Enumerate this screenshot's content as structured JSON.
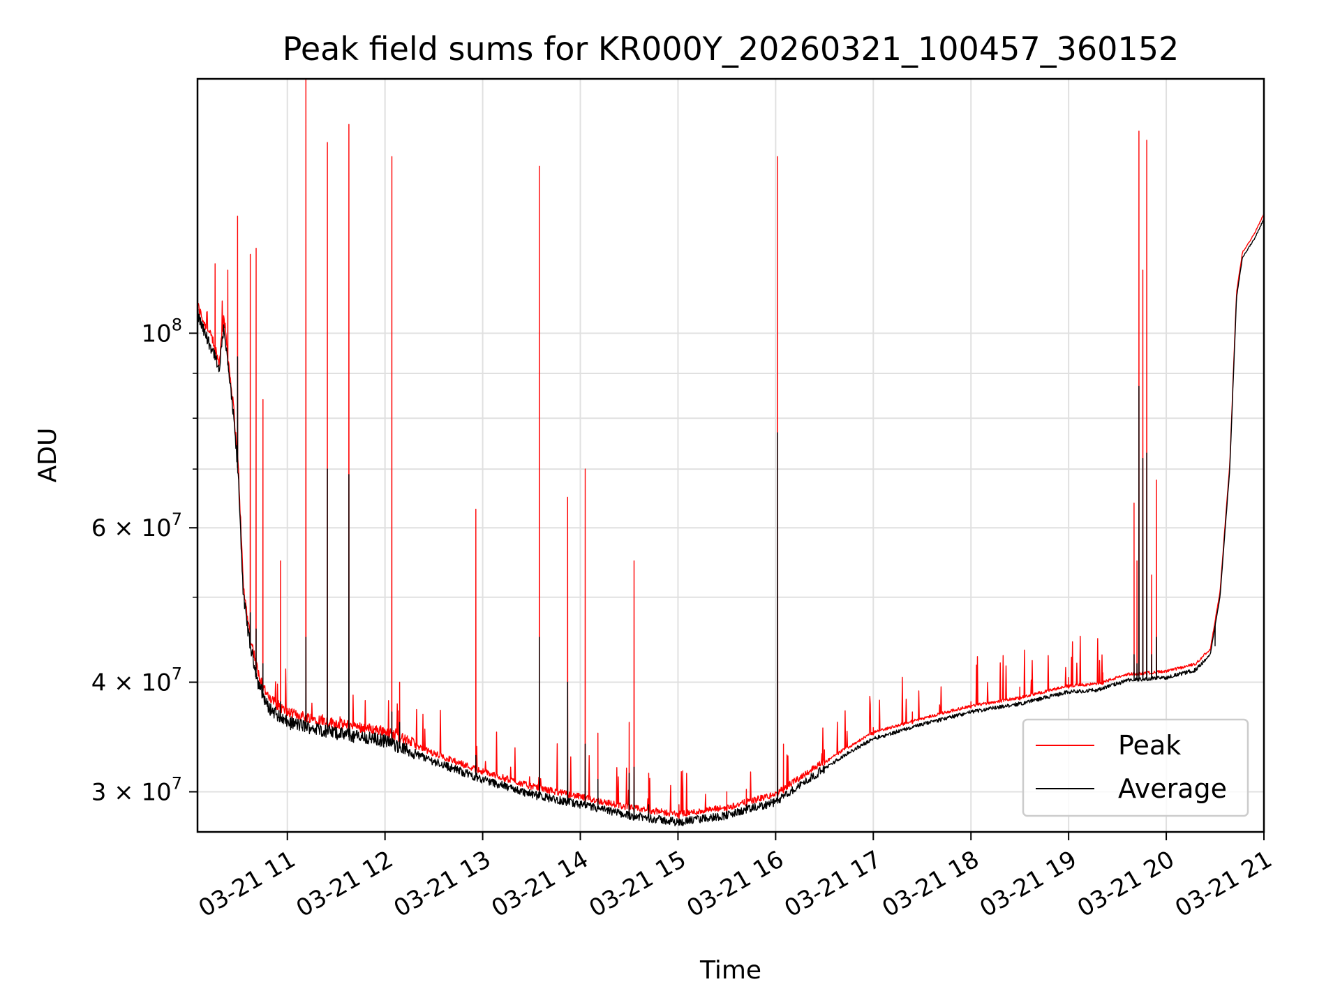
{
  "chart_data": {
    "type": "line",
    "title": "Peak field sums for KR000Y_20260321_100457_360152",
    "xlabel": "Time",
    "ylabel": "ADU",
    "yscale": "log",
    "grid": true,
    "legend_position": "lower-right",
    "x_range_hours": [
      10.08,
      21.0
    ],
    "y_range": [
      27000000,
      195000000
    ],
    "x_ticks": [
      {
        "value": 11,
        "label": "03-21 11"
      },
      {
        "value": 12,
        "label": "03-21 12"
      },
      {
        "value": 13,
        "label": "03-21 13"
      },
      {
        "value": 14,
        "label": "03-21 14"
      },
      {
        "value": 15,
        "label": "03-21 15"
      },
      {
        "value": 16,
        "label": "03-21 16"
      },
      {
        "value": 17,
        "label": "03-21 17"
      },
      {
        "value": 18,
        "label": "03-21 18"
      },
      {
        "value": 19,
        "label": "03-21 19"
      },
      {
        "value": 20,
        "label": "03-21 20"
      },
      {
        "value": 21,
        "label": "03-21 21"
      }
    ],
    "y_ticks": [
      {
        "value": 30000000,
        "mantissa": "3",
        "exp": "7"
      },
      {
        "value": 40000000,
        "mantissa": "4",
        "exp": "7"
      },
      {
        "value": 60000000,
        "mantissa": "6",
        "exp": "7"
      },
      {
        "value": 100000000,
        "mantissa": "",
        "exp": "8"
      }
    ],
    "y_minor_ticks": [
      50000000,
      70000000,
      80000000,
      90000000
    ],
    "series": [
      {
        "name": "Peak",
        "color": "#ff0000"
      },
      {
        "name": "Average",
        "color": "#000000"
      }
    ],
    "baseline": [
      [
        10.08,
        105000000
      ],
      [
        10.15,
        100000000
      ],
      [
        10.25,
        95000000
      ],
      [
        10.3,
        90000000
      ],
      [
        10.35,
        102000000
      ],
      [
        10.4,
        90000000
      ],
      [
        10.45,
        80000000
      ],
      [
        10.5,
        68000000
      ],
      [
        10.55,
        50000000
      ],
      [
        10.62,
        44000000
      ],
      [
        10.7,
        40000000
      ],
      [
        10.8,
        37500000
      ],
      [
        11.0,
        36000000
      ],
      [
        11.5,
        35000000
      ],
      [
        12.0,
        34300000
      ],
      [
        12.5,
        32500000
      ],
      [
        13.0,
        31000000
      ],
      [
        13.5,
        29800000
      ],
      [
        14.0,
        29000000
      ],
      [
        14.5,
        28200000
      ],
      [
        15.0,
        27700000
      ],
      [
        15.5,
        28200000
      ],
      [
        16.0,
        29200000
      ],
      [
        16.3,
        30800000
      ],
      [
        16.7,
        33000000
      ],
      [
        17.0,
        34500000
      ],
      [
        17.5,
        35800000
      ],
      [
        18.0,
        37000000
      ],
      [
        18.5,
        37800000
      ],
      [
        19.0,
        39000000
      ],
      [
        19.3,
        39200000
      ],
      [
        19.6,
        40200000
      ],
      [
        20.0,
        40500000
      ],
      [
        20.3,
        41300000
      ],
      [
        20.45,
        43000000
      ],
      [
        20.55,
        50000000
      ],
      [
        20.65,
        70000000
      ],
      [
        20.72,
        110000000
      ],
      [
        20.78,
        122000000
      ],
      [
        20.9,
        128000000
      ],
      [
        21.0,
        135000000
      ]
    ],
    "spikes": [
      {
        "t": 10.26,
        "peak": 120000000,
        "avg": 95000000
      },
      {
        "t": 10.39,
        "peak": 118000000,
        "avg": 92000000
      },
      {
        "t": 10.49,
        "peak": 136000000,
        "avg": 94000000
      },
      {
        "t": 10.62,
        "peak": 123000000,
        "avg": 48000000
      },
      {
        "t": 10.68,
        "peak": 125000000,
        "avg": 46000000
      },
      {
        "t": 10.75,
        "peak": 84000000,
        "avg": 42000000
      },
      {
        "t": 10.93,
        "peak": 55000000,
        "avg": 38000000
      },
      {
        "t": 11.19,
        "peak": 195000000,
        "avg": 45000000
      },
      {
        "t": 11.41,
        "peak": 165000000,
        "avg": 70000000
      },
      {
        "t": 11.63,
        "peak": 173000000,
        "avg": 69000000
      },
      {
        "t": 12.07,
        "peak": 159000000,
        "avg": 37000000
      },
      {
        "t": 12.15,
        "peak": 40000000,
        "avg": 36000000
      },
      {
        "t": 12.93,
        "peak": 63000000,
        "avg": 33000000
      },
      {
        "t": 13.58,
        "peak": 155000000,
        "avg": 45000000
      },
      {
        "t": 13.87,
        "peak": 65000000,
        "avg": 40000000
      },
      {
        "t": 14.05,
        "peak": 70000000,
        "avg": 34000000
      },
      {
        "t": 14.18,
        "peak": 35000000,
        "avg": 31000000
      },
      {
        "t": 14.5,
        "peak": 36000000,
        "avg": 31500000
      },
      {
        "t": 14.55,
        "peak": 55000000,
        "avg": 32000000
      },
      {
        "t": 14.7,
        "peak": 31500000,
        "avg": 29000000
      },
      {
        "t": 15.01,
        "peak": 29000000,
        "avg": 27900000
      },
      {
        "t": 15.5,
        "peak": 30000000,
        "avg": 28500000
      },
      {
        "t": 15.7,
        "peak": 30200000,
        "avg": 29000000
      },
      {
        "t": 16.02,
        "peak": 159000000,
        "avg": 77000000
      },
      {
        "t": 16.08,
        "peak": 34000000,
        "avg": 29500000
      },
      {
        "t": 16.5,
        "peak": 33500000,
        "avg": 32000000
      },
      {
        "t": 17.0,
        "peak": 35500000,
        "avg": 34500000
      },
      {
        "t": 17.4,
        "peak": 37000000,
        "avg": 35500000
      },
      {
        "t": 18.0,
        "peak": 38000000,
        "avg": 37000000
      },
      {
        "t": 18.5,
        "peak": 39500000,
        "avg": 37800000
      },
      {
        "t": 19.0,
        "peak": 40500000,
        "avg": 39000000
      },
      {
        "t": 19.35,
        "peak": 41000000,
        "avg": 39300000
      },
      {
        "t": 19.67,
        "peak": 64000000,
        "avg": 43000000
      },
      {
        "t": 19.7,
        "peak": 55000000,
        "avg": 42000000
      },
      {
        "t": 19.72,
        "peak": 170000000,
        "avg": 87000000
      },
      {
        "t": 19.76,
        "peak": 118000000,
        "avg": 72000000
      },
      {
        "t": 19.8,
        "peak": 166000000,
        "avg": 73000000
      },
      {
        "t": 19.85,
        "peak": 53000000,
        "avg": 43000000
      },
      {
        "t": 19.9,
        "peak": 68000000,
        "avg": 45000000
      },
      {
        "t": 20.5,
        "peak": 47000000,
        "avg": 44000000
      }
    ]
  }
}
